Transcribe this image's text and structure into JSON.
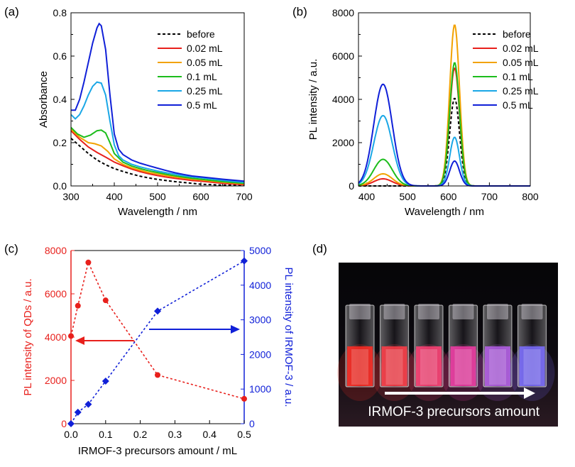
{
  "panels": {
    "a": {
      "label": "(a)"
    },
    "b": {
      "label": "(b)"
    },
    "c": {
      "label": "(c)"
    },
    "d": {
      "label": "(d)"
    }
  },
  "photo": {
    "caption": "IRMOF-3 precursors amount",
    "vial_colors": [
      "#ff2a22",
      "#ff3c46",
      "#ff3f74",
      "#f13aa4",
      "#b45ee8",
      "#7a6cff"
    ]
  },
  "chart_data": [
    {
      "id": "a",
      "type": "line",
      "title": "",
      "xlabel": "Wavelength / nm",
      "ylabel": "Absorbance",
      "xlim": [
        300,
        700
      ],
      "ylim": [
        0,
        0.8
      ],
      "xticks": [
        300,
        400,
        500,
        600,
        700
      ],
      "yticks": [
        0.0,
        0.2,
        0.4,
        0.6,
        0.8
      ],
      "ytick_labels": [
        "0.0",
        "0.2",
        "0.4",
        "0.6",
        "0.8"
      ],
      "legend_position": "top-right",
      "series": [
        {
          "name": "before",
          "color": "#000000",
          "dashed": true,
          "x": [
            300,
            320,
            340,
            360,
            380,
            400,
            420,
            440,
            460,
            480,
            500,
            520,
            540,
            560,
            580,
            600,
            650,
            700
          ],
          "y": [
            0.22,
            0.185,
            0.15,
            0.12,
            0.098,
            0.08,
            0.067,
            0.055,
            0.045,
            0.037,
            0.03,
            0.025,
            0.02,
            0.016,
            0.012,
            0.008,
            0.004,
            0.002
          ]
        },
        {
          "name": "0.02 mL",
          "color": "#e8201c",
          "dashed": false,
          "x": [
            300,
            320,
            340,
            360,
            380,
            400,
            420,
            440,
            460,
            480,
            500,
            520,
            540,
            560,
            580,
            600,
            650,
            700
          ],
          "y": [
            0.255,
            0.215,
            0.18,
            0.155,
            0.133,
            0.11,
            0.093,
            0.078,
            0.066,
            0.056,
            0.048,
            0.041,
            0.035,
            0.03,
            0.025,
            0.022,
            0.012,
            0.006
          ]
        },
        {
          "name": "0.05 mL",
          "color": "#f2a200",
          "dashed": false,
          "x": [
            300,
            320,
            340,
            355,
            370,
            385,
            400,
            420,
            440,
            460,
            480,
            500,
            520,
            540,
            560,
            580,
            600,
            650,
            700
          ],
          "y": [
            0.262,
            0.225,
            0.2,
            0.195,
            0.185,
            0.16,
            0.125,
            0.1,
            0.084,
            0.072,
            0.062,
            0.055,
            0.048,
            0.042,
            0.036,
            0.031,
            0.028,
            0.017,
            0.01
          ]
        },
        {
          "name": "0.1 mL",
          "color": "#1cbd1c",
          "dashed": false,
          "x": [
            300,
            315,
            330,
            345,
            360,
            370,
            380,
            390,
            400,
            420,
            440,
            460,
            480,
            500,
            520,
            540,
            560,
            580,
            600,
            650,
            700
          ],
          "y": [
            0.27,
            0.24,
            0.225,
            0.235,
            0.255,
            0.258,
            0.245,
            0.2,
            0.15,
            0.11,
            0.092,
            0.08,
            0.07,
            0.062,
            0.054,
            0.047,
            0.041,
            0.035,
            0.031,
            0.02,
            0.012
          ]
        },
        {
          "name": "0.25 mL",
          "color": "#1aa7e6",
          "dashed": false,
          "x": [
            300,
            310,
            320,
            330,
            340,
            350,
            360,
            370,
            380,
            390,
            400,
            410,
            420,
            440,
            460,
            480,
            500,
            520,
            540,
            560,
            580,
            600,
            650,
            700
          ],
          "y": [
            0.33,
            0.31,
            0.33,
            0.37,
            0.42,
            0.46,
            0.48,
            0.475,
            0.42,
            0.3,
            0.19,
            0.14,
            0.12,
            0.1,
            0.088,
            0.078,
            0.069,
            0.061,
            0.054,
            0.047,
            0.042,
            0.038,
            0.026,
            0.017
          ]
        },
        {
          "name": "0.5 mL",
          "color": "#1020d8",
          "dashed": false,
          "x": [
            300,
            310,
            320,
            330,
            340,
            350,
            360,
            365,
            370,
            380,
            390,
            400,
            410,
            420,
            440,
            460,
            480,
            500,
            520,
            540,
            560,
            580,
            600,
            650,
            700
          ],
          "y": [
            0.35,
            0.35,
            0.4,
            0.48,
            0.57,
            0.66,
            0.73,
            0.75,
            0.74,
            0.63,
            0.42,
            0.24,
            0.17,
            0.145,
            0.12,
            0.105,
            0.093,
            0.082,
            0.071,
            0.061,
            0.053,
            0.046,
            0.042,
            0.031,
            0.022
          ]
        }
      ]
    },
    {
      "id": "b",
      "type": "line",
      "title": "",
      "xlabel": "Wavelength / nm",
      "ylabel": "PL intensity / a.u.",
      "xlim": [
        380,
        800
      ],
      "ylim": [
        0,
        8000
      ],
      "xticks": [
        400,
        500,
        600,
        700,
        800
      ],
      "yticks": [
        0,
        2000,
        4000,
        6000,
        8000
      ],
      "ytick_labels": [
        "0",
        "2000",
        "4000",
        "6000",
        "8000"
      ],
      "legend_position": "top-right",
      "series": [
        {
          "name": "before",
          "color": "#000000",
          "dashed": true,
          "peak1": 0,
          "peak2": 4050
        },
        {
          "name": "0.02 mL",
          "color": "#e8201c",
          "dashed": false,
          "peak1": 330,
          "peak2": 5450
        },
        {
          "name": "0.05 mL",
          "color": "#f2a200",
          "dashed": false,
          "peak1": 560,
          "peak2": 7450
        },
        {
          "name": "0.1 mL",
          "color": "#1cbd1c",
          "dashed": false,
          "peak1": 1230,
          "peak2": 5700
        },
        {
          "name": "0.25 mL",
          "color": "#1aa7e6",
          "dashed": false,
          "peak1": 3250,
          "peak2": 2250
        },
        {
          "name": "0.5 mL",
          "color": "#1020d8",
          "dashed": false,
          "peak1": 4700,
          "peak2": 1150
        }
      ],
      "peak1_center": 440,
      "peak2_center": 615
    },
    {
      "id": "c",
      "type": "scatter",
      "title": "",
      "xlabel": "IRMOF-3 precursors amount / mL",
      "ylabel_left": "PL intensity of QDs / a.u.",
      "ylabel_right": "PL intensity of IRMOF-3 / a.u.",
      "x": [
        0,
        0.02,
        0.05,
        0.1,
        0.25,
        0.5
      ],
      "xlim": [
        0,
        0.5
      ],
      "xticks": [
        0,
        0.1,
        0.2,
        0.3,
        0.4,
        0.5
      ],
      "xtick_labels": [
        "0.0",
        "0.1",
        "0.2",
        "0.3",
        "0.4",
        "0.5"
      ],
      "ylim_left": [
        0,
        8000
      ],
      "yticks_left": [
        0,
        2000,
        4000,
        6000,
        8000
      ],
      "ylim_right": [
        0,
        5000
      ],
      "yticks_right": [
        0,
        1000,
        2000,
        3000,
        4000,
        5000
      ],
      "series": [
        {
          "name": "PL intensity of QDs",
          "axis": "left",
          "color": "#e8201c",
          "marker": "circle",
          "y": [
            4050,
            5450,
            7450,
            5700,
            2250,
            1150
          ]
        },
        {
          "name": "PL intensity of IRMOF-3",
          "axis": "right",
          "color": "#1020d8",
          "marker": "diamond",
          "y": [
            0,
            330,
            560,
            1230,
            3250,
            4700
          ]
        }
      ]
    }
  ]
}
